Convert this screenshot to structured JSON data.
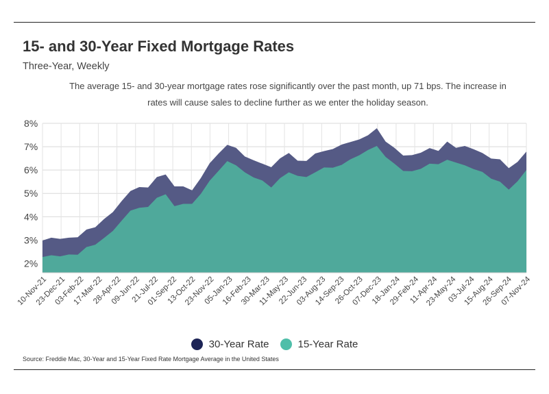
{
  "header": {
    "title": "15- and 30-Year Fixed Mortgage Rates",
    "subtitle": "Three-Year, Weekly",
    "description": "The average 15- and 30-year mortgage rates rose significantly over the past month, up 71 bps. The increase in rates will cause sales to decline further as we enter the holiday season."
  },
  "source": "Source:  Freddie Mac, 30-Year  and 15-Year Fixed Rate Mortgage Average in the United States",
  "colors": {
    "series_30": "#555a85",
    "series_15": "#4fa99b",
    "legend_30": "#1d2456",
    "legend_15": "#4fbea9"
  },
  "chart_data": {
    "type": "area",
    "title": "15- and 30-Year Fixed Mortgage Rates",
    "subtitle": "Three-Year, Weekly",
    "ylim": [
      1.6,
      8.0
    ],
    "y_ticks": [
      "2%",
      "3%",
      "4%",
      "5%",
      "6%",
      "7%",
      "8%"
    ],
    "x_tick_labels": [
      "10-Nov-21",
      "23-Dec-21",
      "03-Feb-22",
      "17-Mar-22",
      "28-Apr-22",
      "09-Jun-22",
      "21-Jul-22",
      "01-Sep-22",
      "13-Oct-22",
      "23-Nov-22",
      "05-Jan-23",
      "16-Feb-23",
      "30-Mar-23",
      "11-May-23",
      "22-Jun-23",
      "03-Aug-23",
      "14-Sep-23",
      "26-Oct-23",
      "07-Dec-23",
      "18-Jan-24",
      "29-Feb-24",
      "11-Apr-24",
      "23-May-24",
      "03-Jul-24",
      "15-Aug-24",
      "26-Sep-24",
      "07-Nov-24"
    ],
    "grid": true,
    "legend_position": "bottom",
    "series": [
      {
        "name": "30-Year Rate",
        "values": [
          2.98,
          3.1,
          3.05,
          3.1,
          3.12,
          3.45,
          3.55,
          3.9,
          4.2,
          4.67,
          5.1,
          5.27,
          5.25,
          5.7,
          5.81,
          5.3,
          5.3,
          5.13,
          5.66,
          6.29,
          6.7,
          7.08,
          6.95,
          6.58,
          6.42,
          6.27,
          6.12,
          6.5,
          6.73,
          6.4,
          6.39,
          6.71,
          6.81,
          6.9,
          7.09,
          7.2,
          7.31,
          7.49,
          7.79,
          7.22,
          6.95,
          6.62,
          6.64,
          6.74,
          6.94,
          6.82,
          7.22,
          6.95,
          7.03,
          6.89,
          6.73,
          6.49,
          6.46,
          6.08,
          6.35,
          6.79
        ]
      },
      {
        "name": "15-Year Rate",
        "values": [
          2.27,
          2.35,
          2.3,
          2.38,
          2.37,
          2.7,
          2.8,
          3.09,
          3.39,
          3.83,
          4.26,
          4.38,
          4.42,
          4.81,
          4.96,
          4.45,
          4.55,
          4.55,
          4.98,
          5.54,
          5.96,
          6.38,
          6.2,
          5.9,
          5.68,
          5.55,
          5.25,
          5.65,
          5.9,
          5.75,
          5.7,
          5.9,
          6.11,
          6.1,
          6.22,
          6.46,
          6.63,
          6.86,
          7.03,
          6.56,
          6.27,
          5.96,
          5.95,
          6.05,
          6.27,
          6.25,
          6.44,
          6.32,
          6.2,
          6.04,
          5.92,
          5.63,
          5.5,
          5.16,
          5.52,
          6.0
        ]
      }
    ]
  },
  "legend": {
    "label_30": "30-Year Rate",
    "label_15": "15-Year Rate"
  }
}
